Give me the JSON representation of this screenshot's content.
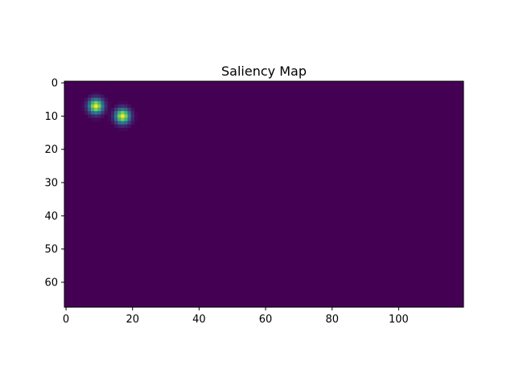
{
  "chart_data": {
    "type": "heatmap",
    "title": "Saliency Map",
    "xlabel": "",
    "ylabel": "",
    "colormap": "viridis",
    "background_color": "#440154",
    "grid_width": 120,
    "grid_height": 68,
    "xlim": [
      -0.5,
      119.5
    ],
    "ylim": [
      67.5,
      -0.5
    ],
    "x_ticks": [
      0,
      20,
      40,
      60,
      80,
      100
    ],
    "y_ticks": [
      0,
      10,
      20,
      30,
      40,
      50,
      60
    ],
    "grid": false,
    "hotspots": [
      {
        "x": 9,
        "y": 7,
        "sigma": 1.5,
        "peak": 1.0
      },
      {
        "x": 17,
        "y": 10,
        "sigma": 1.5,
        "peak": 1.0
      }
    ]
  }
}
